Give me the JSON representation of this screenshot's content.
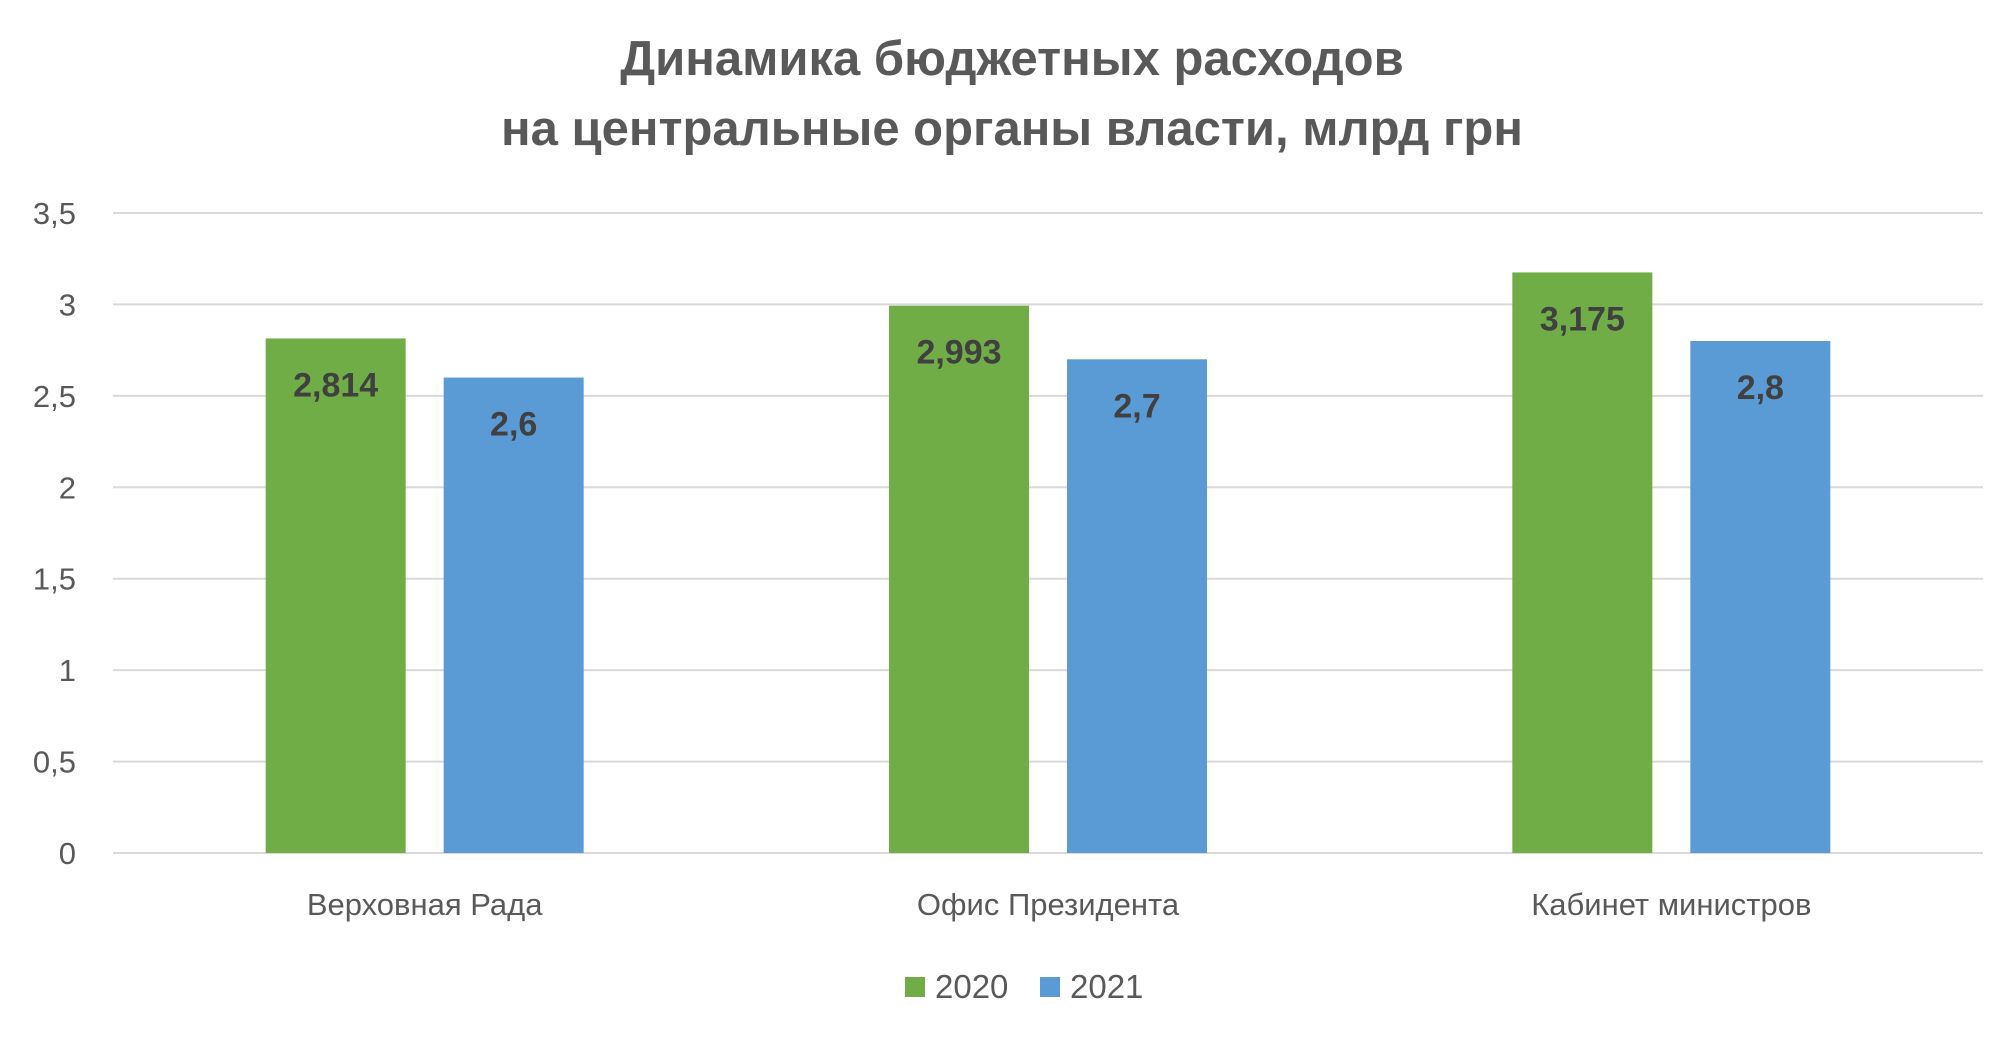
{
  "chart_data": {
    "type": "bar",
    "title": "Динамика бюджетных расходов на центральные органы власти, млрд грн",
    "title_lines": [
      "Динамика бюджетных расходов",
      "на центральные органы власти, млрд грн"
    ],
    "categories": [
      "Верховная Рада",
      "Офис Президента",
      "Кабинет министров"
    ],
    "series": [
      {
        "name": "2020",
        "color": "#70AD47",
        "values": [
          2.814,
          2.993,
          3.175
        ],
        "labels": [
          "2,814",
          "2,993",
          "3,175"
        ]
      },
      {
        "name": "2021",
        "color": "#5B9BD5",
        "values": [
          2.6,
          2.7,
          2.8
        ],
        "labels": [
          "2,6",
          "2,7",
          "2,8"
        ]
      }
    ],
    "ylim": [
      0,
      3.5
    ],
    "yticks": [
      0,
      0.5,
      1,
      1.5,
      2,
      2.5,
      3,
      3.5
    ],
    "ytick_labels": [
      "0",
      "0,5",
      "1",
      "1,5",
      "2",
      "2,5",
      "3",
      "3,5"
    ],
    "xlabel": "",
    "ylabel": "",
    "grid": true,
    "gridline_color": "#D9D9D9",
    "legend_position": "bottom"
  }
}
